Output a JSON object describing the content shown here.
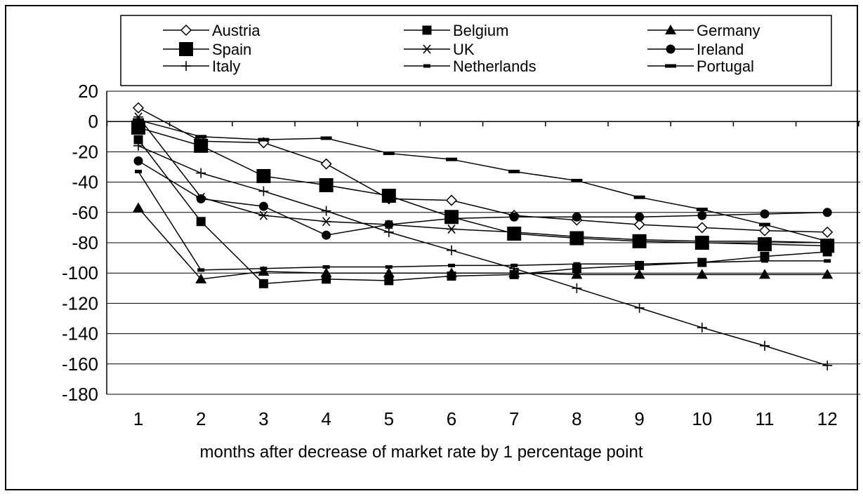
{
  "chart_data": {
    "type": "line",
    "title": "",
    "xlabel": "months after decrease of market rate by 1 percentage point",
    "ylabel": "",
    "categories": [
      "1",
      "2",
      "3",
      "4",
      "5",
      "6",
      "7",
      "8",
      "9",
      "10",
      "11",
      "12"
    ],
    "ylim": [
      -180,
      20
    ],
    "yticks": [
      20,
      0,
      -20,
      -40,
      -60,
      -80,
      -100,
      -120,
      -140,
      -160,
      -180
    ],
    "grid": true,
    "legend_placement": "top",
    "series": [
      {
        "name": "Austria",
        "marker": "diamond-open",
        "values": [
          9,
          -13,
          -14,
          -28,
          -51,
          -52,
          -62,
          -65,
          -68,
          -70,
          -72,
          -73
        ]
      },
      {
        "name": "Belgium",
        "marker": "square-small",
        "values": [
          -12,
          -66,
          -107,
          -104,
          -105,
          -102,
          -101,
          -97,
          -95,
          -93,
          -89,
          -86
        ]
      },
      {
        "name": "Germany",
        "marker": "triangle",
        "values": [
          -57,
          -104,
          -99,
          -100,
          -100,
          -100,
          -100,
          -101,
          -101,
          -101,
          -101,
          -101
        ]
      },
      {
        "name": "Spain",
        "marker": "square-large",
        "values": [
          -4,
          -16,
          -36,
          -42,
          -49,
          -63,
          -74,
          -77,
          -79,
          -80,
          -81,
          -82
        ]
      },
      {
        "name": "UK",
        "marker": "asterisk",
        "values": [
          3,
          -50,
          -62,
          -66,
          -68,
          -71,
          -73,
          -76,
          -78,
          -79,
          -79,
          -80
        ]
      },
      {
        "name": "Ireland",
        "marker": "circle",
        "values": [
          -26,
          -51,
          -56,
          -75,
          -68,
          -64,
          -63,
          -63,
          -63,
          -62,
          -61,
          -60
        ]
      },
      {
        "name": "Italy",
        "marker": "plus",
        "values": [
          -16,
          -34,
          -46,
          -59,
          -73,
          -85,
          -97,
          -110,
          -123,
          -136,
          -148,
          -161
        ]
      },
      {
        "name": "Netherlands",
        "marker": "dash-small",
        "values": [
          -33,
          -98,
          -97,
          -96,
          -96,
          -95,
          -95,
          -94,
          -94,
          -93,
          -92,
          -92
        ]
      },
      {
        "name": "Portugal",
        "marker": "dash",
        "values": [
          1,
          -10,
          -12,
          -11,
          -21,
          -25,
          -33,
          -39,
          -50,
          -58,
          -68,
          -79
        ]
      }
    ]
  }
}
